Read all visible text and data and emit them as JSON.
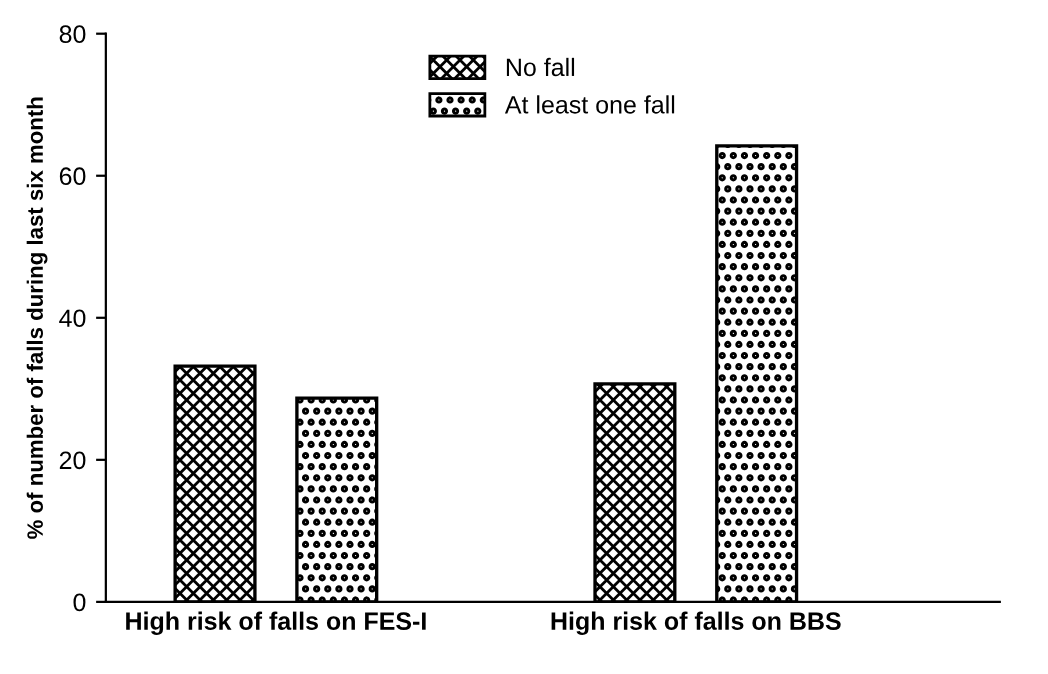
{
  "chart_data": {
    "type": "bar",
    "ylabel": "% of number of falls during last six month",
    "categories": [
      "High risk of falls on FES-I",
      "High risk of falls on BBS"
    ],
    "series": [
      {
        "name": "No fall",
        "color": "#000000",
        "values": [
          33.2,
          30.7
        ]
      },
      {
        "name": "At least one fall",
        "color": "#000000",
        "values": [
          28.7,
          64.2
        ]
      }
    ],
    "ylim": [
      0,
      80
    ],
    "yticks": [
      0,
      20,
      40,
      60,
      80
    ],
    "grid": false,
    "legend": "top"
  }
}
